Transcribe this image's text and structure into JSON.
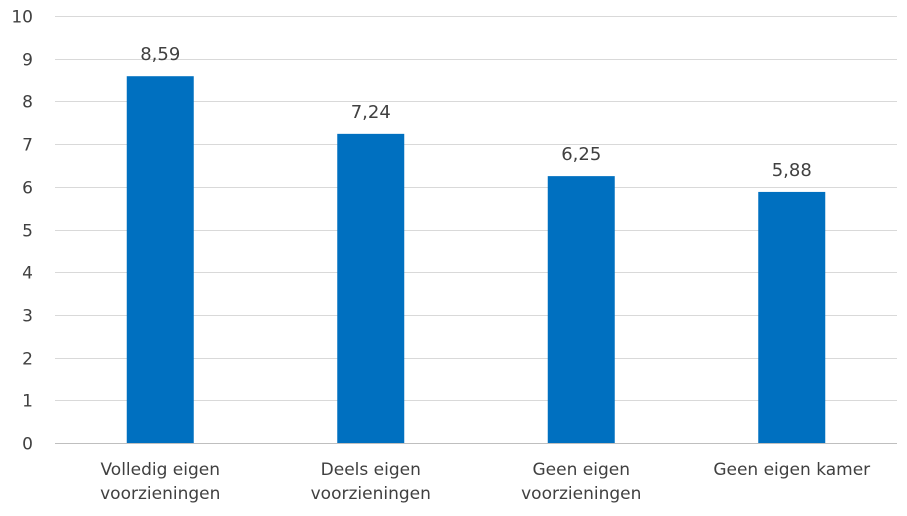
{
  "chart_data": {
    "type": "bar",
    "categories": [
      [
        "Volledig eigen",
        "voorzieningen"
      ],
      [
        "Deels eigen",
        "voorzieningen"
      ],
      [
        "Geen eigen",
        "voorzieningen"
      ],
      [
        "Geen eigen kamer"
      ]
    ],
    "values": [
      8.59,
      7.24,
      6.25,
      5.88
    ],
    "value_labels": [
      "8,59",
      "7,24",
      "6,25",
      "5,88"
    ],
    "ylim": [
      0,
      10
    ],
    "yticks": [
      0,
      1,
      2,
      3,
      4,
      5,
      6,
      7,
      8,
      9,
      10
    ],
    "grid": true,
    "legend": "none",
    "bar_color": "#0070C0",
    "title": "",
    "xlabel": "",
    "ylabel": ""
  }
}
